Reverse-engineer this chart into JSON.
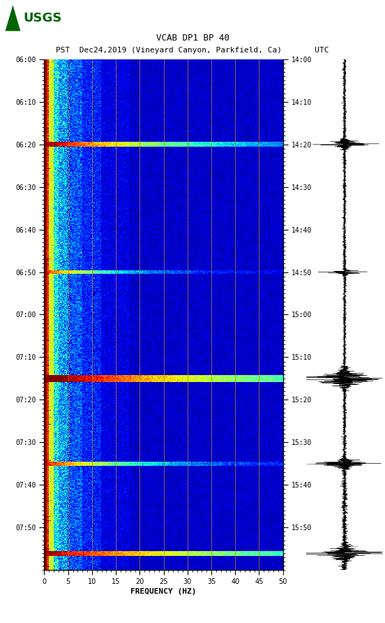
{
  "title_line1": "VCAB DP1 BP 40",
  "title_line2": "PST  Dec24,2019 (Vineyard Canyon, Parkfield, Ca)       UTC",
  "xlabel": "FREQUENCY (HZ)",
  "left_yticks": [
    "06:00",
    "06:10",
    "06:20",
    "06:30",
    "06:40",
    "06:50",
    "07:00",
    "07:10",
    "07:20",
    "07:30",
    "07:40",
    "07:50"
  ],
  "right_yticks": [
    "14:00",
    "14:10",
    "14:20",
    "14:30",
    "14:40",
    "14:50",
    "15:00",
    "15:10",
    "15:20",
    "15:30",
    "15:40",
    "15:50"
  ],
  "freq_min": 0,
  "freq_max": 50,
  "n_freq_bins": 250,
  "n_time_bins": 720,
  "vertical_lines_freq": [
    5,
    10,
    15,
    20,
    25,
    30,
    35,
    40,
    45
  ],
  "vline_color": "#B8860B",
  "background_color": "white",
  "spectrogram_bg": "#00008B",
  "logo_color": "#006400",
  "tick_label_size": 7,
  "xlabel_size": 8
}
